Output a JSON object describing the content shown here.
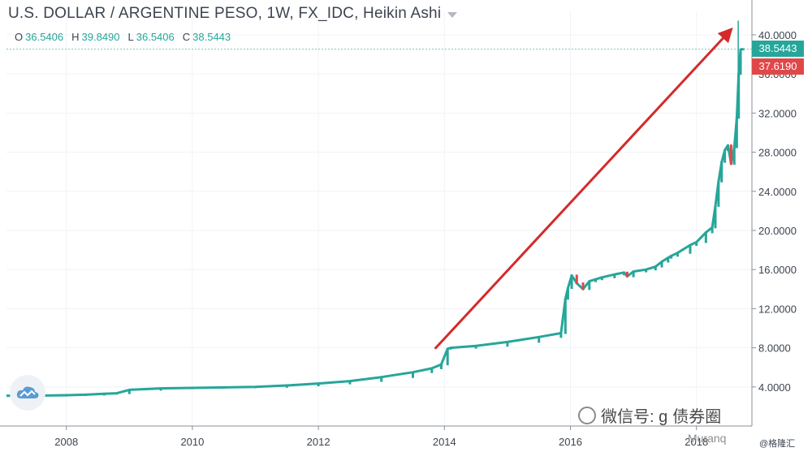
{
  "header": {
    "title": "U.S. DOLLAR / ARGENTINE PESO, 1W, FX_IDC, Heikin Ashi",
    "ohlc": [
      {
        "label": "O",
        "value": "36.5406"
      },
      {
        "label": "H",
        "value": "39.8490"
      },
      {
        "label": "L",
        "value": "36.5406"
      },
      {
        "label": "C",
        "value": "38.5443"
      }
    ]
  },
  "price_badges": {
    "close": "38.5443",
    "last": "37.6190"
  },
  "watermark": {
    "wechat_text": "微信号: g",
    "account_suffix": "债券圈",
    "weibo_text": "Muranq",
    "credit": "@格隆汇"
  },
  "colors": {
    "up": "#26a69a",
    "down": "#e04848",
    "arrow": "#d42a2a",
    "grid": "#f0f3f6",
    "axis_text": "#3d4450"
  },
  "chart_data": {
    "type": "line",
    "title": "U.S. DOLLAR / ARGENTINE PESO, 1W, FX_IDC, Heikin Ashi",
    "xlabel": "",
    "ylabel": "",
    "xlim": [
      2007.05,
      2018.88
    ],
    "ylim": [
      0,
      42.4
    ],
    "x_ticks": [
      "2008",
      "2010",
      "2012",
      "2014",
      "2016",
      "2018"
    ],
    "x_tick_values": [
      2008,
      2010,
      2012,
      2014,
      2016,
      2018
    ],
    "y_ticks": [
      "4.0000",
      "8.0000",
      "12.0000",
      "16.0000",
      "20.0000",
      "24.0000",
      "28.0000",
      "32.0000",
      "36.0000",
      "40.0000"
    ],
    "y_tick_values": [
      4,
      8,
      12,
      16,
      20,
      24,
      28,
      32,
      36,
      40
    ],
    "grid": true,
    "series": [
      {
        "x": [
          2007.05,
          2007.5,
          2008.0,
          2008.3,
          2008.6,
          2008.8,
          2009.0,
          2009.5,
          2010.0,
          2010.5,
          2011.0,
          2011.5,
          2012.0,
          2012.5,
          2013.0,
          2013.5,
          2013.8,
          2013.95,
          2014.05,
          2014.1,
          2014.5,
          2015.0,
          2015.5,
          2015.85,
          2015.92,
          2015.96,
          2016.02,
          2016.1,
          2016.2,
          2016.3,
          2016.4,
          2016.5,
          2016.7,
          2016.85,
          2016.9,
          2017.0,
          2017.2,
          2017.35,
          2017.45,
          2017.55,
          2017.6,
          2017.7,
          2017.9,
          2018.0,
          2018.15,
          2018.25,
          2018.3,
          2018.35,
          2018.4,
          2018.45,
          2018.5,
          2018.55,
          2018.6,
          2018.64,
          2018.67,
          2018.7,
          2018.74
        ],
        "y": [
          3.1,
          3.1,
          3.15,
          3.2,
          3.3,
          3.35,
          3.7,
          3.85,
          3.9,
          3.95,
          4.0,
          4.15,
          4.35,
          4.6,
          5.0,
          5.5,
          5.9,
          6.3,
          7.9,
          8.0,
          8.2,
          8.6,
          9.1,
          9.5,
          13.0,
          14.1,
          15.4,
          14.6,
          14.0,
          14.8,
          15.0,
          15.2,
          15.5,
          15.7,
          15.3,
          15.8,
          16.0,
          16.3,
          16.8,
          17.2,
          17.4,
          17.7,
          18.5,
          18.8,
          19.8,
          20.3,
          22.5,
          25.0,
          27.0,
          28.2,
          28.7,
          26.8,
          28.5,
          31.5,
          36.0,
          38.5,
          38.5443
        ]
      }
    ],
    "annotations": [
      {
        "type": "arrow",
        "from": [
          2013.85,
          7.9
        ],
        "to": [
          2018.5,
          40.2
        ]
      }
    ],
    "last_value_labels": [
      "38.5443",
      "37.6190"
    ],
    "ohlc_last": {
      "open": 36.5406,
      "high": 39.849,
      "low": 36.5406,
      "close": 38.5443
    }
  }
}
